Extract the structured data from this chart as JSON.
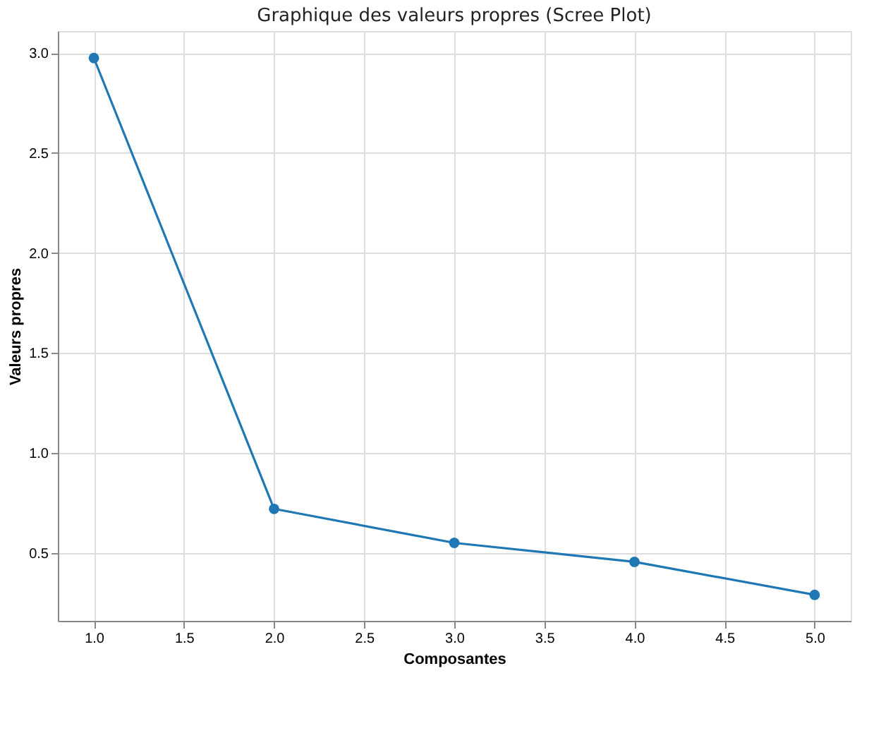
{
  "chart_data": {
    "type": "line",
    "title": "Graphique des valeurs propres (Scree Plot)",
    "xlabel": "Composantes",
    "ylabel": "Valeurs propres",
    "x": [
      1,
      2,
      3,
      4,
      5
    ],
    "series": [
      {
        "color": "#1f77b4",
        "values": [
          2.975,
          0.72,
          0.55,
          0.455,
          0.29
        ]
      }
    ],
    "xlim": [
      0.8,
      5.2
    ],
    "xticks": [
      {
        "value": 1,
        "label": "1.0"
      },
      {
        "value": 1.5,
        "label": "1.5"
      },
      {
        "value": 2,
        "label": "2.0"
      },
      {
        "value": 2.5,
        "label": "2.5"
      },
      {
        "value": 3,
        "label": "3.0"
      },
      {
        "value": 3.5,
        "label": "3.5"
      },
      {
        "value": 4,
        "label": "4.0"
      },
      {
        "value": 4.5,
        "label": "4.5"
      },
      {
        "value": 5,
        "label": "5.0"
      }
    ],
    "ylim": [
      0.16,
      3.11
    ],
    "yticks": [
      {
        "value": 0.5,
        "label": "0.5"
      },
      {
        "value": 1,
        "label": "1.0"
      },
      {
        "value": 1.5,
        "label": "1.5"
      },
      {
        "value": 2,
        "label": "2.0"
      },
      {
        "value": 2.5,
        "label": "2.5"
      },
      {
        "value": 3,
        "label": "3.0"
      }
    ],
    "grid": true,
    "marker": "circle",
    "line_style": "solid"
  }
}
